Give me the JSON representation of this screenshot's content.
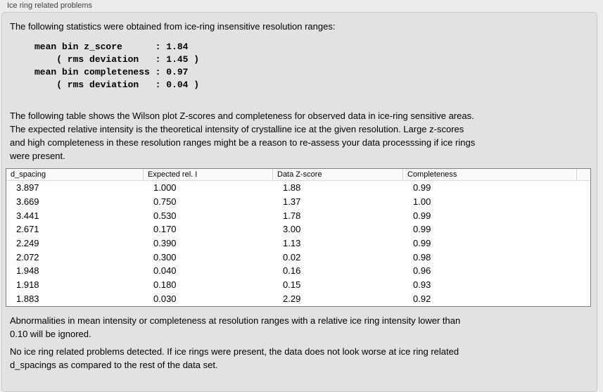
{
  "theme": {
    "window_bg": "#ececec",
    "groupbox_bg": "#e2e2e2",
    "groupbox_border": "#c8c8c8",
    "table_bg": "#ffffff",
    "table_border": "#7f7f7f",
    "table_header_bg": "#fafafa",
    "text_color": "#000000",
    "title_color": "#404040"
  },
  "panel": {
    "title": "Ice ring related problems"
  },
  "intro": {
    "text": "The following statistics were obtained from ice-ring insensitive resolution ranges:"
  },
  "stats": {
    "lines": [
      "mean bin z_score      : 1.84",
      "    ( rms deviation   : 1.45 )",
      "mean bin completeness : 0.97",
      "    ( rms deviation   : 0.04 )"
    ],
    "mean_bin_z_score": 1.84,
    "z_score_rms_deviation": 1.45,
    "mean_bin_completeness": 0.97,
    "completeness_rms_deviation": 0.04
  },
  "description": {
    "lines": [
      "The following table shows the Wilson plot Z-scores and completeness for observed data in ice-ring sensitive areas.",
      "The expected relative intensity is the theoretical intensity of crystalline ice at the given resolution. Large z-scores",
      "and high completeness in these resolution ranges might be a reason to re-assess your data processsing if ice rings",
      "were present."
    ]
  },
  "table": {
    "columns": [
      "d_spacing",
      "Expected rel. I",
      "Data Z-score",
      "Completeness"
    ],
    "rows": [
      [
        "3.897",
        "1.000",
        "1.88",
        "0.99"
      ],
      [
        "3.669",
        "0.750",
        "1.37",
        "1.00"
      ],
      [
        "3.441",
        "0.530",
        "1.78",
        "0.99"
      ],
      [
        "2.671",
        "0.170",
        "3.00",
        "0.99"
      ],
      [
        "2.249",
        "0.390",
        "1.13",
        "0.99"
      ],
      [
        "2.072",
        "0.300",
        "0.02",
        "0.98"
      ],
      [
        "1.948",
        "0.040",
        "0.16",
        "0.96"
      ],
      [
        "1.918",
        "0.180",
        "0.15",
        "0.93"
      ],
      [
        "1.883",
        "0.030",
        "2.29",
        "0.92"
      ]
    ]
  },
  "notes": {
    "ignore_rule_lines": [
      "Abnormalities in mean intensity or completeness at resolution ranges with a relative ice ring intensity lower than",
      "0.10 will be ignored."
    ],
    "conclusion_lines": [
      "No ice ring related problems detected. If ice rings were present, the data does not look worse at ice ring related",
      "d_spacings as compared to the rest of the data set."
    ]
  }
}
